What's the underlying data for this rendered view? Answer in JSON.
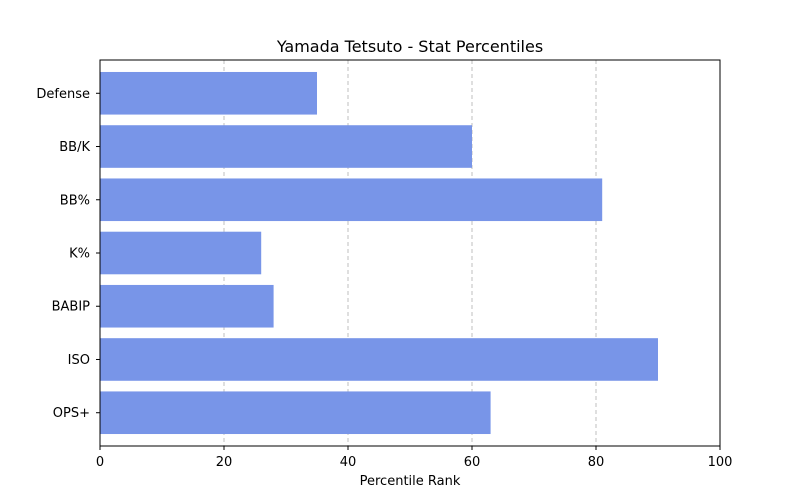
{
  "chart_data": {
    "type": "bar",
    "orientation": "horizontal",
    "title": "Yamada Tetsuto - Stat Percentiles",
    "xlabel": "Percentile Rank",
    "ylabel": "",
    "xlim": [
      0,
      100
    ],
    "xticks": [
      0,
      20,
      40,
      60,
      80,
      100
    ],
    "grid": "x-axis dashed",
    "categories": [
      "OPS+",
      "ISO",
      "BABIP",
      "K%",
      "BB%",
      "BB/K",
      "Defense"
    ],
    "values": [
      63,
      90,
      28,
      26,
      81,
      60,
      35
    ],
    "bar_color": "#7895e8"
  }
}
